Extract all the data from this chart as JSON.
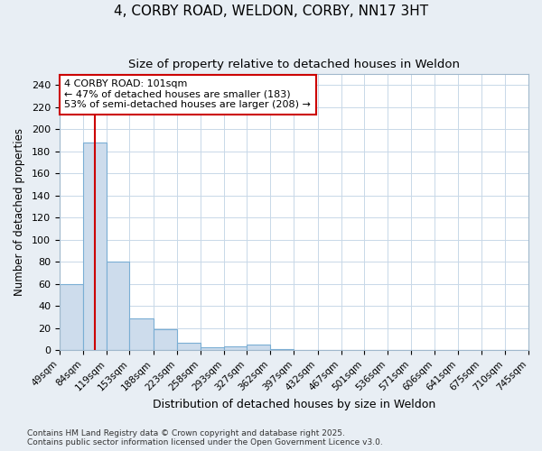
{
  "title1": "4, CORBY ROAD, WELDON, CORBY, NN17 3HT",
  "title2": "Size of property relative to detached houses in Weldon",
  "xlabel": "Distribution of detached houses by size in Weldon",
  "ylabel": "Number of detached properties",
  "bins": [
    49,
    84,
    119,
    153,
    188,
    223,
    258,
    293,
    327,
    362,
    397,
    432,
    467,
    501,
    536,
    571,
    606,
    641,
    675,
    710,
    745
  ],
  "bin_labels": [
    "49sqm",
    "84sqm",
    "119sqm",
    "153sqm",
    "188sqm",
    "223sqm",
    "258sqm",
    "293sqm",
    "327sqm",
    "362sqm",
    "397sqm",
    "432sqm",
    "467sqm",
    "501sqm",
    "536sqm",
    "571sqm",
    "606sqm",
    "641sqm",
    "675sqm",
    "710sqm",
    "745sqm"
  ],
  "heights": [
    60,
    188,
    80,
    29,
    19,
    7,
    3,
    4,
    5,
    1,
    0,
    0,
    0,
    0,
    0,
    0,
    0,
    0,
    0,
    0
  ],
  "bar_color": "#cddcec",
  "bar_edge_color": "#7aaed4",
  "bar_linewidth": 0.8,
  "grid_color": "#c8d8e8",
  "plot_bg_color": "#ffffff",
  "fig_bg_color": "#e8eef4",
  "property_size": 101,
  "red_line_color": "#cc0000",
  "annotation_line1": "4 CORBY ROAD: 101sqm",
  "annotation_line2": "← 47% of detached houses are smaller (183)",
  "annotation_line3": "53% of semi-detached houses are larger (208) →",
  "ylim": [
    0,
    250
  ],
  "yticks": [
    0,
    20,
    40,
    60,
    80,
    100,
    120,
    140,
    160,
    180,
    200,
    220,
    240
  ],
  "footer": "Contains HM Land Registry data © Crown copyright and database right 2025.\nContains public sector information licensed under the Open Government Licence v3.0."
}
